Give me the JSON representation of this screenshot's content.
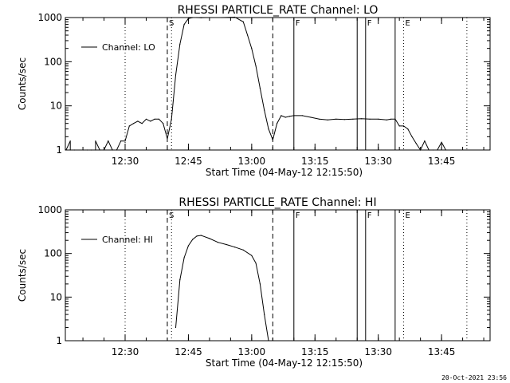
{
  "footer_timestamp": "20-Oct-2021 23:56",
  "chart_data": [
    {
      "type": "line",
      "title": "RHESSI  PARTICLE_RATE  Channel: LO",
      "xlabel": "Start Time (04-May-12 12:15:50)",
      "ylabel": "Counts/sec",
      "yscale": "log",
      "xlim": [
        "12:15:50",
        "13:56:30"
      ],
      "ylim": [
        1,
        1000
      ],
      "xticks": [
        "12:30",
        "12:45",
        "13:00",
        "13:15",
        "13:30",
        "13:45"
      ],
      "yticks": [
        "1",
        "10",
        "100",
        "1000"
      ],
      "legend": {
        "label": "Channel: LO",
        "placement": "top-left"
      },
      "markers": {
        "dotted": [
          "12:30",
          "12:41",
          "13:36",
          "13:51"
        ],
        "dashed": [
          {
            "t": "12:40",
            "label": "S"
          },
          {
            "t": "13:05",
            "label": ""
          }
        ],
        "solid": [
          {
            "t": "13:10",
            "label": "F"
          },
          {
            "t": "13:25",
            "label": ""
          },
          {
            "t": "13:27",
            "label": "F"
          },
          {
            "t": "13:34",
            "label": ""
          }
        ],
        "eclipse": [
          {
            "t": "13:36",
            "label": "E"
          }
        ]
      },
      "series": [
        {
          "x": [
            "12:16",
            "12:17",
            "12:17",
            "12:18",
            "12:20",
            "12:21",
            "12:22",
            "12:23",
            "12:23",
            "12:24",
            "12:25",
            "12:26",
            "12:27",
            "12:28",
            "12:29",
            "12:30",
            "12:31",
            "12:32",
            "12:33",
            "12:34",
            "12:35",
            "12:36",
            "12:37",
            "12:38",
            "12:39",
            "12:40",
            "12:41",
            "12:42",
            "12:43",
            "12:44",
            "12:45",
            "12:46",
            "12:47",
            "12:48",
            "12:50",
            "12:53",
            "12:56",
            "12:58",
            "12:59",
            "13:00",
            "13:01",
            "13:02",
            "13:03",
            "13:04",
            "13:05",
            "13:06",
            "13:07",
            "13:08",
            "13:09",
            "13:10",
            "13:12",
            "13:14",
            "13:16",
            "13:18",
            "13:20",
            "13:22",
            "13:24",
            "13:26",
            "13:28",
            "13:30",
            "13:32",
            "13:33",
            "13:34",
            "13:35",
            "13:36",
            "13:37",
            "13:38",
            "13:39",
            "13:40",
            "13:41",
            "13:42",
            "13:43",
            "13:44",
            "13:45",
            "13:46"
          ],
          "y": [
            1,
            1.6,
            1,
            1,
            1,
            1,
            1,
            1,
            1.6,
            1,
            1,
            1.6,
            1,
            1,
            1.6,
            1.6,
            3.5,
            4,
            4.5,
            4,
            5,
            4.5,
            5,
            5,
            4,
            1.8,
            5,
            50,
            250,
            700,
            950,
            1000,
            1000,
            990,
            1000,
            1000,
            1020,
            800,
            400,
            200,
            80,
            25,
            8,
            3,
            1.7,
            4,
            6,
            5.5,
            5.8,
            6,
            6,
            5.5,
            5,
            4.8,
            5,
            4.9,
            5,
            5.1,
            5,
            5,
            4.8,
            5,
            5,
            3.5,
            3.5,
            3,
            2,
            1.4,
            1,
            1.6,
            1,
            1,
            1,
            1.5,
            1
          ]
        }
      ]
    },
    {
      "type": "line",
      "title": "RHESSI  PARTICLE_RATE  Channel: HI",
      "xlabel": "Start Time (04-May-12 12:15:50)",
      "ylabel": "Counts/sec",
      "yscale": "log",
      "xlim": [
        "12:15:50",
        "13:56:30"
      ],
      "ylim": [
        1,
        1000
      ],
      "xticks": [
        "12:30",
        "12:45",
        "13:00",
        "13:15",
        "13:30",
        "13:45"
      ],
      "yticks": [
        "1",
        "10",
        "100",
        "1000"
      ],
      "legend": {
        "label": "Channel: HI",
        "placement": "top-left"
      },
      "markers": {
        "dotted": [
          "12:30",
          "12:41",
          "13:36",
          "13:51"
        ],
        "dashed": [
          {
            "t": "12:40",
            "label": "S"
          },
          {
            "t": "13:05",
            "label": ""
          }
        ],
        "solid": [
          {
            "t": "13:10",
            "label": "F"
          },
          {
            "t": "13:25",
            "label": ""
          },
          {
            "t": "13:27",
            "label": "F"
          },
          {
            "t": "13:34",
            "label": ""
          }
        ],
        "eclipse": [
          {
            "t": "13:36",
            "label": "E"
          }
        ]
      },
      "series": [
        {
          "x": [
            "12:42",
            "12:43",
            "12:44",
            "12:45",
            "12:46",
            "12:47",
            "12:48",
            "12:50",
            "12:52",
            "12:54",
            "12:56",
            "12:58",
            "13:00",
            "13:01",
            "13:02",
            "13:03",
            "13:04"
          ],
          "y": [
            2,
            25,
            80,
            150,
            210,
            250,
            260,
            220,
            180,
            160,
            140,
            120,
            90,
            60,
            20,
            4,
            1
          ]
        }
      ]
    }
  ]
}
